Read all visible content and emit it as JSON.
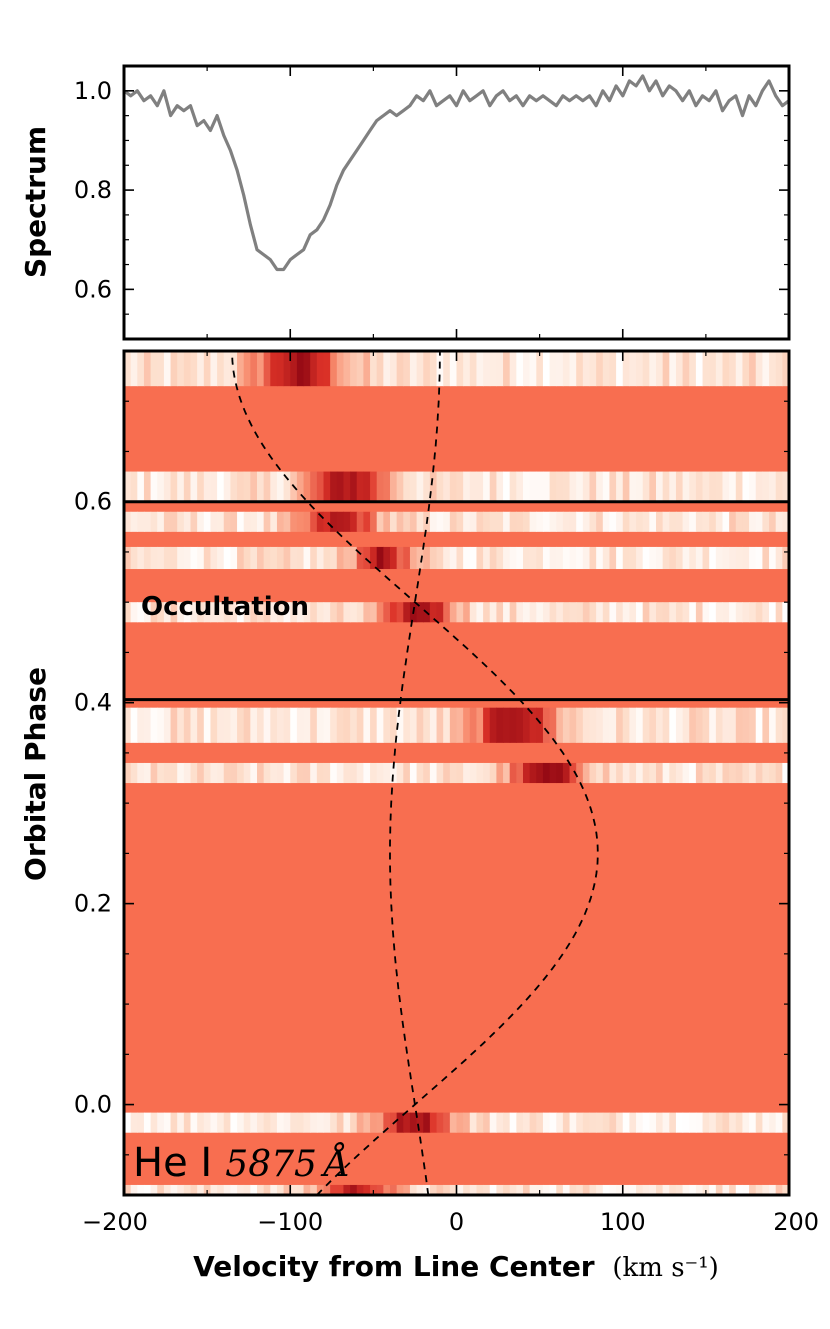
{
  "figure": {
    "line_label": {
      "species": "He I",
      "wavelength": "5875",
      "unit": "Å"
    },
    "annotation": "Occultation"
  },
  "chart_data": [
    {
      "type": "line",
      "panel": "spectrum",
      "ylabel": "Spectrum",
      "xlabel": "",
      "xlim": [
        -200,
        200
      ],
      "ylim": [
        0.5,
        1.05
      ],
      "yticks": [
        {
          "v": 0.6,
          "label": "0.6"
        },
        {
          "v": 0.8,
          "label": "0.8"
        },
        {
          "v": 1.0,
          "label": "1.0"
        }
      ],
      "line_color": "#808080",
      "x": [
        -200,
        -196,
        -192,
        -188,
        -184,
        -180,
        -176,
        -172,
        -168,
        -164,
        -160,
        -156,
        -152,
        -148,
        -144,
        -140,
        -136,
        -132,
        -128,
        -124,
        -120,
        -116,
        -112,
        -108,
        -104,
        -100,
        -96,
        -92,
        -88,
        -84,
        -80,
        -76,
        -72,
        -68,
        -64,
        -60,
        -56,
        -52,
        -48,
        -44,
        -40,
        -36,
        -32,
        -28,
        -24,
        -20,
        -16,
        -12,
        -8,
        -4,
        0,
        4,
        8,
        12,
        16,
        20,
        24,
        28,
        32,
        36,
        40,
        44,
        48,
        52,
        56,
        60,
        64,
        68,
        72,
        76,
        80,
        84,
        88,
        92,
        96,
        100,
        104,
        108,
        112,
        116,
        120,
        124,
        128,
        132,
        136,
        140,
        144,
        148,
        152,
        156,
        160,
        164,
        168,
        172,
        176,
        180,
        184,
        188,
        192,
        196,
        200
      ],
      "values": [
        1.0,
        0.99,
        1.0,
        0.98,
        0.99,
        0.97,
        1.0,
        0.95,
        0.97,
        0.96,
        0.97,
        0.93,
        0.94,
        0.92,
        0.95,
        0.91,
        0.88,
        0.84,
        0.79,
        0.73,
        0.68,
        0.67,
        0.66,
        0.64,
        0.64,
        0.66,
        0.67,
        0.68,
        0.71,
        0.72,
        0.74,
        0.77,
        0.81,
        0.84,
        0.86,
        0.88,
        0.9,
        0.92,
        0.94,
        0.95,
        0.96,
        0.95,
        0.96,
        0.97,
        0.99,
        0.98,
        1.0,
        0.97,
        0.98,
        0.99,
        0.97,
        1.0,
        0.98,
        0.99,
        1.0,
        0.97,
        0.99,
        1.0,
        0.98,
        0.99,
        0.97,
        0.99,
        0.98,
        0.99,
        0.98,
        0.97,
        0.99,
        0.98,
        0.99,
        0.98,
        0.99,
        0.97,
        1.0,
        0.98,
        1.01,
        0.99,
        1.02,
        1.01,
        1.03,
        1.0,
        1.02,
        0.99,
        1.01,
        1.0,
        0.98,
        1.0,
        0.97,
        0.99,
        0.98,
        1.0,
        0.96,
        0.98,
        0.99,
        0.95,
        0.99,
        0.97,
        1.0,
        1.02,
        0.99,
        0.97,
        0.98
      ]
    },
    {
      "type": "heatmap",
      "panel": "trailed-spectra",
      "xlabel": "Velocity from Line Center",
      "xlabel_unit": "(km s⁻¹)",
      "ylabel": "Orbital Phase",
      "xlim": [
        -200,
        200
      ],
      "ylim": [
        -0.09,
        0.75
      ],
      "xticks": [
        {
          "v": -200,
          "label": "−200"
        },
        {
          "v": -100,
          "label": "−100"
        },
        {
          "v": 0,
          "label": "0"
        },
        {
          "v": 100,
          "label": "100"
        },
        {
          "v": 200,
          "label": "200"
        }
      ],
      "yticks": [
        {
          "v": 0.0,
          "label": "0.0"
        },
        {
          "v": 0.2,
          "label": "0.2"
        },
        {
          "v": 0.4,
          "label": "0.4"
        },
        {
          "v": 0.6,
          "label": "0.6"
        }
      ],
      "background_color": "#f86e50",
      "occultation_window": [
        0.403,
        0.6
      ],
      "observed_rows": [
        {
          "phase_min": 0.715,
          "phase_max": 0.75,
          "absorption_center": -95,
          "absorption_width": 28,
          "depth": 0.85
        },
        {
          "phase_min": 0.6,
          "phase_max": 0.63,
          "absorption_center": -65,
          "absorption_width": 26,
          "depth": 0.85
        },
        {
          "phase_min": 0.57,
          "phase_max": 0.59,
          "absorption_center": -70,
          "absorption_width": 24,
          "depth": 0.8
        },
        {
          "phase_min": 0.533,
          "phase_max": 0.555,
          "absorption_center": -45,
          "absorption_width": 18,
          "depth": 0.85
        },
        {
          "phase_min": 0.48,
          "phase_max": 0.5,
          "absorption_center": -22,
          "absorption_width": 22,
          "depth": 0.9
        },
        {
          "phase_min": 0.36,
          "phase_max": 0.395,
          "absorption_center": 35,
          "absorption_width": 26,
          "depth": 0.9
        },
        {
          "phase_min": 0.32,
          "phase_max": 0.34,
          "absorption_center": 55,
          "absorption_width": 24,
          "depth": 0.9
        },
        {
          "phase_min": -0.028,
          "phase_max": -0.008,
          "absorption_center": -25,
          "absorption_width": 24,
          "depth": 0.9
        },
        {
          "phase_min": -0.09,
          "phase_max": -0.08,
          "absorption_center": -60,
          "absorption_width": 24,
          "depth": 0.8
        }
      ],
      "model_curves": [
        {
          "name": "planet-orbit",
          "K": 110,
          "v0": -25,
          "style": "dashed"
        },
        {
          "name": "stellar-orbit",
          "K": -15,
          "v0": -25,
          "style": "dashed"
        }
      ]
    }
  ]
}
